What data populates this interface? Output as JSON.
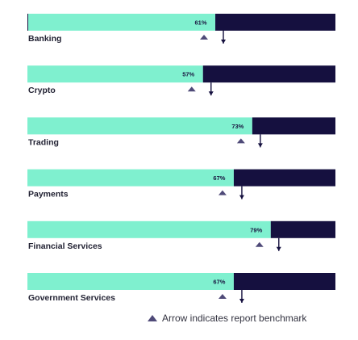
{
  "chart_data": {
    "type": "bar",
    "orientation": "horizontal-stacked",
    "categories": [
      "Banking",
      "Crypto",
      "Trading",
      "Payments",
      "Financial Services",
      "Government Services"
    ],
    "values": [
      61,
      57,
      73,
      67,
      79,
      67
    ],
    "value_labels": [
      "61%",
      "57%",
      "73%",
      "67%",
      "79%",
      "67%"
    ],
    "benchmark_values": [
      61,
      57,
      73,
      67,
      79,
      67
    ],
    "xlim": [
      0,
      100
    ],
    "colors": {
      "fill": "#7ff0cf",
      "remainder": "#15103f",
      "marker": "#4f4a78",
      "divider": "#15103f"
    },
    "legend": {
      "marker": "triangle-up",
      "text": "Arrow indicates report benchmark"
    }
  }
}
